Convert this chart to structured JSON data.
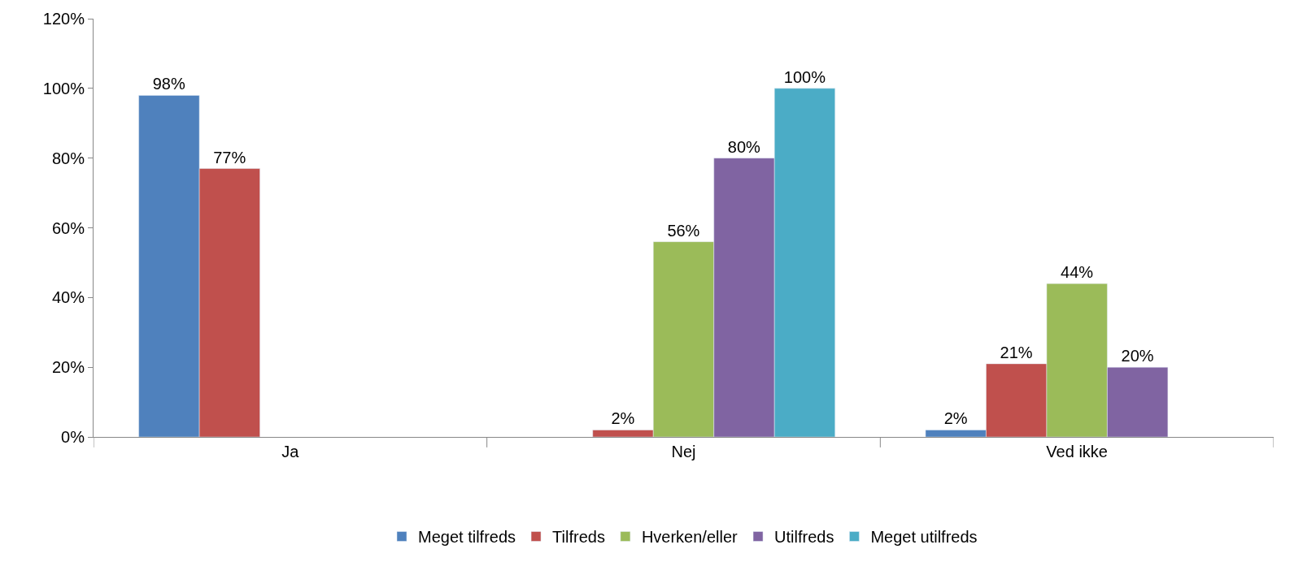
{
  "chart_data": {
    "type": "bar",
    "categories": [
      "Ja",
      "Nej",
      "Ved ikke"
    ],
    "series": [
      {
        "name": "Meget tilfreds",
        "color": "#4f81bd",
        "values": [
          98,
          null,
          2
        ],
        "value_labels": [
          "98%",
          null,
          "2%"
        ]
      },
      {
        "name": "Tilfreds",
        "color": "#c0504d",
        "values": [
          77,
          2,
          21
        ],
        "value_labels": [
          "77%",
          "2%",
          "21%"
        ]
      },
      {
        "name": "Hverken/eller",
        "color": "#9bbb59",
        "values": [
          null,
          56,
          44
        ],
        "value_labels": [
          null,
          "56%",
          "44%"
        ]
      },
      {
        "name": "Utilfreds",
        "color": "#8064a2",
        "values": [
          null,
          80,
          20
        ],
        "value_labels": [
          null,
          "80%",
          "20%"
        ]
      },
      {
        "name": "Meget utilfreds",
        "color": "#4bacc6",
        "values": [
          null,
          100,
          null
        ],
        "value_labels": [
          null,
          "100%",
          null
        ]
      }
    ],
    "ylim": [
      0,
      120
    ],
    "yticks": [
      {
        "value": 0,
        "label": "0%"
      },
      {
        "value": 20,
        "label": "20%"
      },
      {
        "value": 40,
        "label": "40%"
      },
      {
        "value": 60,
        "label": "60%"
      },
      {
        "value": 80,
        "label": "80%"
      },
      {
        "value": 100,
        "label": "100%"
      },
      {
        "value": 120,
        "label": "120%"
      }
    ],
    "grid": false,
    "legend": "bottom"
  }
}
